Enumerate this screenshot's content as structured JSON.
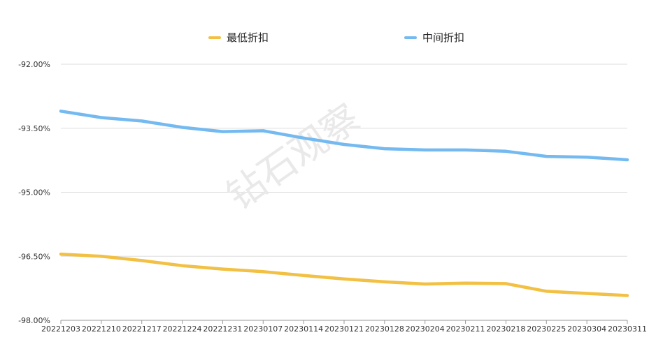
{
  "chart_data": {
    "type": "line",
    "watermark": "钻石观察",
    "x": [
      "20221203",
      "20221210",
      "20221217",
      "20221224",
      "20221231",
      "20230107",
      "20230114",
      "20230121",
      "20230128",
      "20230204",
      "20230211",
      "20230218",
      "20230225",
      "20230304",
      "20230311"
    ],
    "ylim": [
      -98.0,
      -92.0
    ],
    "yticks": [
      "-92.00%",
      "-93.50%",
      "-95.00%",
      "-96.50%",
      "-98.00%"
    ],
    "ytick_values": [
      -92.0,
      -93.5,
      -95.0,
      -96.5,
      -98.0
    ],
    "grid": true,
    "legend_position": "top-center",
    "series": [
      {
        "name": "最低折扣",
        "color": "#f2c043",
        "values": [
          -96.45,
          -96.5,
          -96.6,
          -96.72,
          -96.8,
          -96.86,
          -96.95,
          -97.03,
          -97.1,
          -97.15,
          -97.13,
          -97.14,
          -97.32,
          -97.37,
          -97.42
        ]
      },
      {
        "name": "中间折扣",
        "color": "#74baf0",
        "values": [
          -93.1,
          -93.25,
          -93.33,
          -93.48,
          -93.58,
          -93.56,
          -93.73,
          -93.88,
          -93.98,
          -94.01,
          -94.01,
          -94.04,
          -94.16,
          -94.18,
          -94.24
        ]
      }
    ]
  }
}
